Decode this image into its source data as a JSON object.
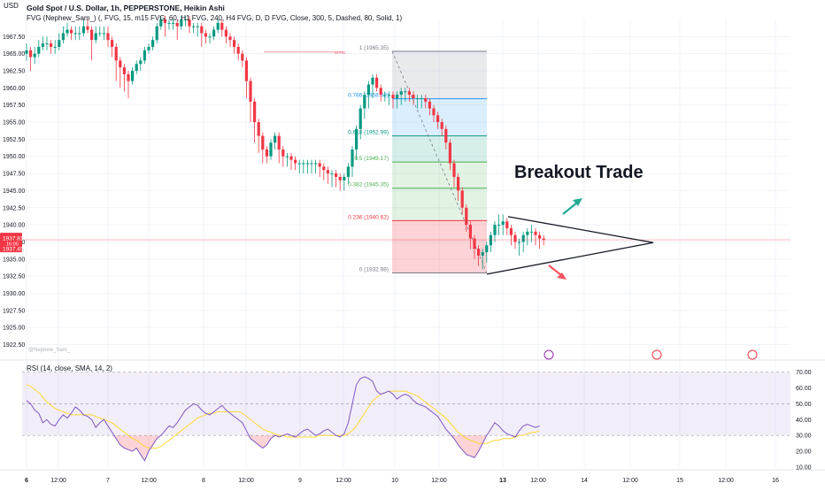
{
  "chart_data": {
    "type": "candlestick",
    "title": "Gold Spot / U.S. Dollar, 1h, PEPPERSTONE, Heikin Ashi",
    "currency_label": "USD",
    "indicator_line": "FVG (Nephew_Sam_) (, FVG, 15, m15 FVG, 60, H1 FVG, 240, H4 FVG, D, D FVG, Close, 300, 5, Dashed, 80, Solid, 1)",
    "watermark": "@Nephew_Sam_",
    "annotation": "Breakout Trade",
    "price_axis": {
      "ylim": [
        1920.5,
        1970.0
      ],
      "ticks": [
        1922.5,
        1925.0,
        1927.5,
        1930.0,
        1932.5,
        1935.0,
        1937.5,
        1940.0,
        1942.5,
        1945.0,
        1947.5,
        1950.0,
        1952.5,
        1955.0,
        1957.5,
        1960.0,
        1962.5,
        1965.0,
        1967.5
      ],
      "tick_labels": [
        "1922.50",
        "1925.00",
        "1927.50",
        "1930.00",
        "1932.50",
        "1935.00",
        "1937.50",
        "1940.00",
        "1942.50",
        "1945.00",
        "1947.50",
        "1950.00",
        "1952.50",
        "1955.00",
        "1957.50",
        "1960.00",
        "1962.50",
        "1965.00",
        "1967.50"
      ],
      "current_price": 1937.81,
      "current_price_label": "1937.81",
      "countdown_label": "16:00",
      "secondary_price_label": "1937.45"
    },
    "time_axis": {
      "labels": [
        "6",
        "12:00",
        "7",
        "12:00",
        "8",
        "12:00",
        "9",
        "12:00",
        "10",
        "12:00",
        "13",
        "12:00",
        "14",
        "12:00",
        "15",
        "12:00",
        "16"
      ],
      "bold": [
        "6",
        "13"
      ]
    },
    "candles": {
      "open": [
        1965.0,
        1965.5,
        1964.5,
        1965.0,
        1966.0,
        1966.5,
        1966.5,
        1966.0,
        1966.0,
        1967.0,
        1968.0,
        1968.5,
        1968.0,
        1968.0,
        1968.0,
        1969.0,
        1968.5,
        1967.0,
        1968.0,
        1968.0,
        1968.0,
        1967.0,
        1966.0,
        1964.0,
        1963.0,
        1962.0,
        1961.0,
        1962.5,
        1963.5,
        1964.0,
        1965.5,
        1966.0,
        1967.0,
        1969.0,
        1970.0,
        1969.5,
        1969.5,
        1969.5,
        1969.0,
        1970.0,
        1970.0,
        1969.0,
        1969.0,
        1969.0,
        1968.0,
        1967.5,
        1967.5,
        1968.5,
        1969.5,
        1968.5,
        1967.5,
        1967.0,
        1966.0,
        1965.0,
        1964.0,
        1961.0,
        1958.0,
        1955.0,
        1953.0,
        1951.0,
        1950.0,
        1952.0,
        1953.0,
        1951.0,
        1950.0,
        1950.0,
        1949.5,
        1949.0,
        1949.0,
        1949.0,
        1949.0,
        1949.0,
        1949.0,
        1948.5,
        1948.0,
        1947.5,
        1947.5,
        1947.0,
        1946.5,
        1947.0,
        1948.5,
        1951.0,
        1954.0,
        1957.0,
        1959.0,
        1960.5,
        1961.5,
        1960.0,
        1959.0,
        1959.0,
        1959.0,
        1958.5,
        1959.0,
        1959.5,
        1959.5,
        1959.0,
        1958.5,
        1958.5,
        1958.5,
        1958.0,
        1957.0,
        1956.0,
        1955.0,
        1954.0,
        1952.0,
        1949.0,
        1947.0,
        1945.0,
        1942.5,
        1940.0,
        1938.0,
        1936.5,
        1935.5,
        1936.0,
        1937.0,
        1938.5,
        1940.0,
        1940.0,
        1940.5,
        1939.5,
        1938.5,
        1937.5,
        1937.5,
        1938.5,
        1939.0,
        1939.0,
        1938.5,
        1938.0
      ],
      "close": [
        1965.5,
        1964.5,
        1965.0,
        1966.0,
        1966.5,
        1966.5,
        1966.0,
        1966.0,
        1967.0,
        1968.0,
        1968.5,
        1968.0,
        1968.0,
        1968.0,
        1969.0,
        1968.5,
        1967.0,
        1968.0,
        1968.0,
        1968.0,
        1967.0,
        1966.0,
        1964.0,
        1963.0,
        1962.0,
        1961.0,
        1962.5,
        1963.5,
        1964.0,
        1965.5,
        1966.0,
        1967.0,
        1969.0,
        1970.0,
        1969.5,
        1969.5,
        1969.5,
        1969.0,
        1970.0,
        1970.0,
        1969.0,
        1969.0,
        1969.0,
        1968.0,
        1967.5,
        1967.5,
        1968.5,
        1969.5,
        1968.5,
        1967.5,
        1967.0,
        1966.0,
        1965.0,
        1964.0,
        1961.0,
        1958.0,
        1955.0,
        1953.0,
        1951.0,
        1950.0,
        1952.0,
        1953.0,
        1951.0,
        1950.0,
        1950.0,
        1949.5,
        1949.0,
        1949.0,
        1949.0,
        1949.0,
        1949.0,
        1949.0,
        1948.5,
        1948.0,
        1947.5,
        1947.5,
        1947.0,
        1946.5,
        1947.0,
        1948.5,
        1951.0,
        1954.0,
        1957.0,
        1959.0,
        1960.5,
        1961.5,
        1960.0,
        1959.0,
        1959.0,
        1959.0,
        1958.5,
        1959.0,
        1959.5,
        1959.5,
        1959.0,
        1958.5,
        1958.5,
        1958.5,
        1958.0,
        1957.0,
        1956.0,
        1955.0,
        1954.0,
        1952.0,
        1949.0,
        1947.0,
        1945.0,
        1942.5,
        1940.0,
        1938.0,
        1936.5,
        1935.5,
        1936.0,
        1937.0,
        1938.5,
        1940.0,
        1940.0,
        1940.5,
        1939.5,
        1938.5,
        1937.5,
        1937.5,
        1938.5,
        1939.0,
        1939.0,
        1938.5,
        1938.0,
        1937.8
      ],
      "high": [
        1966.5,
        1966.0,
        1966.0,
        1967.0,
        1967.5,
        1967.5,
        1967.0,
        1967.0,
        1968.0,
        1969.0,
        1969.5,
        1969.0,
        1969.0,
        1969.0,
        1970.0,
        1970.0,
        1969.0,
        1969.0,
        1969.0,
        1969.0,
        1969.0,
        1967.5,
        1966.5,
        1964.5,
        1963.5,
        1962.5,
        1963.0,
        1964.0,
        1964.5,
        1966.0,
        1966.5,
        1967.5,
        1969.5,
        1970.5,
        1970.5,
        1970.0,
        1970.0,
        1970.0,
        1970.5,
        1970.5,
        1970.5,
        1969.5,
        1969.5,
        1969.5,
        1968.5,
        1968.0,
        1969.0,
        1970.0,
        1970.0,
        1969.0,
        1968.0,
        1967.5,
        1966.5,
        1965.5,
        1964.5,
        1961.5,
        1958.5,
        1955.5,
        1953.5,
        1951.5,
        1952.5,
        1953.5,
        1953.5,
        1951.5,
        1950.5,
        1950.5,
        1950.0,
        1949.5,
        1949.5,
        1949.5,
        1949.5,
        1949.5,
        1949.5,
        1949.0,
        1948.5,
        1948.0,
        1948.0,
        1947.5,
        1947.5,
        1949.0,
        1951.5,
        1954.5,
        1957.5,
        1959.5,
        1961.0,
        1962.0,
        1962.0,
        1960.5,
        1959.5,
        1959.5,
        1959.5,
        1959.5,
        1960.0,
        1960.0,
        1960.0,
        1959.5,
        1959.0,
        1959.0,
        1959.0,
        1958.5,
        1957.5,
        1956.5,
        1955.5,
        1954.5,
        1952.5,
        1949.5,
        1947.5,
        1945.5,
        1943.0,
        1940.5,
        1938.5,
        1937.0,
        1936.5,
        1937.5,
        1939.0,
        1940.5,
        1941.5,
        1941.5,
        1941.0,
        1940.0,
        1939.0,
        1938.0,
        1939.0,
        1939.5,
        1940.0,
        1939.5,
        1939.0,
        1938.5
      ],
      "low": [
        1964.0,
        1962.5,
        1963.5,
        1964.5,
        1965.5,
        1965.5,
        1965.0,
        1965.0,
        1965.5,
        1966.5,
        1967.5,
        1967.0,
        1967.0,
        1967.0,
        1967.5,
        1968.0,
        1964.0,
        1966.5,
        1967.5,
        1967.0,
        1966.0,
        1964.5,
        1961.0,
        1960.0,
        1959.5,
        1958.5,
        1960.5,
        1962.0,
        1962.5,
        1963.5,
        1965.0,
        1965.5,
        1966.5,
        1968.5,
        1967.5,
        1968.5,
        1968.5,
        1967.0,
        1968.5,
        1969.0,
        1968.0,
        1968.0,
        1967.5,
        1966.0,
        1966.5,
        1966.5,
        1967.0,
        1968.0,
        1967.5,
        1966.5,
        1966.0,
        1965.0,
        1964.0,
        1963.0,
        1958.5,
        1955.0,
        1952.0,
        1950.5,
        1949.0,
        1949.0,
        1949.5,
        1951.0,
        1949.0,
        1948.5,
        1948.5,
        1948.0,
        1948.0,
        1947.5,
        1947.5,
        1947.5,
        1947.5,
        1947.5,
        1947.0,
        1946.5,
        1946.0,
        1945.5,
        1945.5,
        1945.0,
        1945.0,
        1946.0,
        1947.0,
        1949.5,
        1952.5,
        1955.5,
        1957.0,
        1958.5,
        1959.5,
        1958.0,
        1958.0,
        1957.5,
        1957.0,
        1957.0,
        1957.5,
        1958.0,
        1958.0,
        1957.5,
        1957.0,
        1957.0,
        1957.0,
        1956.0,
        1955.0,
        1954.0,
        1953.0,
        1951.0,
        1948.0,
        1945.5,
        1943.5,
        1941.5,
        1939.0,
        1936.5,
        1935.0,
        1934.0,
        1933.5,
        1934.5,
        1936.0,
        1937.5,
        1938.5,
        1938.5,
        1938.5,
        1937.0,
        1936.5,
        1935.5,
        1936.0,
        1937.0,
        1937.5,
        1937.0,
        1936.5,
        1937.0
      ]
    },
    "fib_levels": [
      {
        "ratio_label": "1",
        "price": 1965.35,
        "label": "1 (1965.35)"
      },
      {
        "ratio_label": "0.786",
        "price": 1958.42,
        "label": "0.786 (1958.42)"
      },
      {
        "ratio_label": "0.618",
        "price": 1952.99,
        "label": "0.618 (1952.99)"
      },
      {
        "ratio_label": "0.5",
        "price": 1949.17,
        "label": "0.5 (1949.17)"
      },
      {
        "ratio_label": "0.382",
        "price": 1945.35,
        "label": "0.382 (1945.35)"
      },
      {
        "ratio_label": "0.236",
        "price": 1940.62,
        "label": "0.236 (1940.62)"
      },
      {
        "ratio_label": "0",
        "price": 1932.98,
        "label": "0 (1932.98)"
      }
    ],
    "fvg_label": "H1 FVG",
    "rsi": {
      "title": "RSI (14, close, SMA, 14, 2)",
      "ylim": [
        10,
        72
      ],
      "ticks": [
        70,
        60,
        50,
        40,
        30,
        20,
        10
      ],
      "tick_labels": [
        "70.00",
        "60.00",
        "50.00",
        "40.00",
        "30.00",
        "20.00",
        "10.00"
      ],
      "upper_band": 70,
      "middle_band": 50,
      "lower_band": 30,
      "rsi_values": [
        52,
        50,
        46,
        44,
        38,
        40,
        37,
        36,
        40,
        43,
        41,
        44,
        48,
        46,
        43,
        42,
        40,
        35,
        38,
        40,
        36,
        32,
        28,
        24,
        22,
        21,
        20,
        22,
        18,
        14,
        20,
        24,
        28,
        30,
        33,
        36,
        35,
        38,
        42,
        46,
        48,
        50,
        49,
        46,
        44,
        43,
        45,
        47,
        49,
        46,
        44,
        42,
        40,
        38,
        33,
        28,
        26,
        24,
        22,
        24,
        28,
        30,
        29,
        30,
        31,
        30,
        29,
        31,
        33,
        34,
        32,
        30,
        31,
        33,
        34,
        32,
        30,
        29,
        31,
        38,
        50,
        62,
        66,
        67,
        66,
        64,
        58,
        56,
        57,
        58,
        56,
        53,
        55,
        56,
        55,
        52,
        50,
        49,
        48,
        46,
        44,
        42,
        38,
        34,
        31,
        28,
        24,
        21,
        18,
        17,
        16,
        20,
        25,
        30,
        34,
        38,
        36,
        33,
        31,
        30,
        29,
        33,
        36,
        37,
        36,
        35,
        36
      ],
      "sma_values": [
        62,
        61,
        59,
        57,
        54,
        51,
        49,
        47,
        46,
        45,
        44,
        43,
        43,
        43,
        43,
        43,
        43,
        42,
        41,
        40,
        39,
        38,
        36,
        34,
        32,
        30,
        28,
        27,
        25,
        23,
        22,
        22,
        22,
        23,
        25,
        27,
        29,
        31,
        33,
        35,
        37,
        39,
        41,
        42,
        43,
        44,
        44,
        45,
        45,
        45,
        45,
        45,
        45,
        44,
        42,
        40,
        38,
        36,
        34,
        33,
        32,
        31,
        30,
        30,
        29,
        29,
        29,
        29,
        29,
        29,
        29,
        29,
        30,
        30,
        30,
        30,
        30,
        30,
        30,
        31,
        33,
        36,
        40,
        44,
        48,
        52,
        54,
        56,
        57,
        58,
        58,
        58,
        58,
        58,
        57,
        56,
        55,
        53,
        51,
        49,
        47,
        45,
        43,
        41,
        38,
        35,
        32,
        30,
        28,
        27,
        26,
        25,
        25,
        25,
        26,
        27,
        27,
        28,
        28,
        28,
        29,
        30,
        30,
        31,
        32,
        32,
        33
      ]
    },
    "colors": {
      "up": "#089981",
      "down": "#f23645",
      "fib_upper": "#787b86",
      "fib_blue": "#2196f3",
      "fib_teal": "#089981",
      "fib_green": "#4caf50",
      "fib_red": "#f23645",
      "rsi_line": "#7e57c2",
      "rsi_sma": "#fdd835",
      "annotation_up": "#22ab94",
      "annotation_down": "#f7525f"
    }
  }
}
